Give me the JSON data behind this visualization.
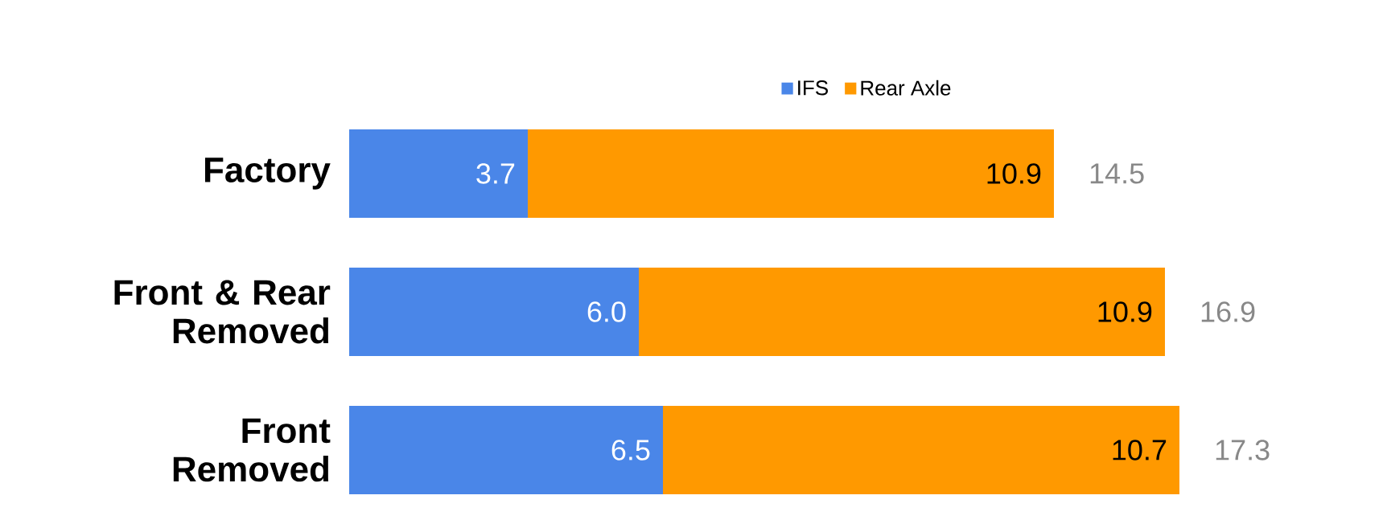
{
  "chart_data": {
    "type": "bar",
    "orientation": "horizontal",
    "stacked": true,
    "categories": [
      "Factory",
      "Front & Rear Removed",
      "Front Removed"
    ],
    "series": [
      {
        "name": "IFS",
        "color": "#4a86e8",
        "values": [
          3.7,
          6.0,
          6.5
        ],
        "value_labels": [
          "3.7",
          "6.0",
          "6.5"
        ]
      },
      {
        "name": "Rear Axle",
        "color": "#ff9900",
        "values": [
          10.9,
          10.9,
          10.7
        ],
        "value_labels": [
          "10.9",
          "10.9",
          "10.7"
        ]
      }
    ],
    "totals": [
      "14.5",
      "16.9",
      "17.3"
    ],
    "legend": "top"
  }
}
